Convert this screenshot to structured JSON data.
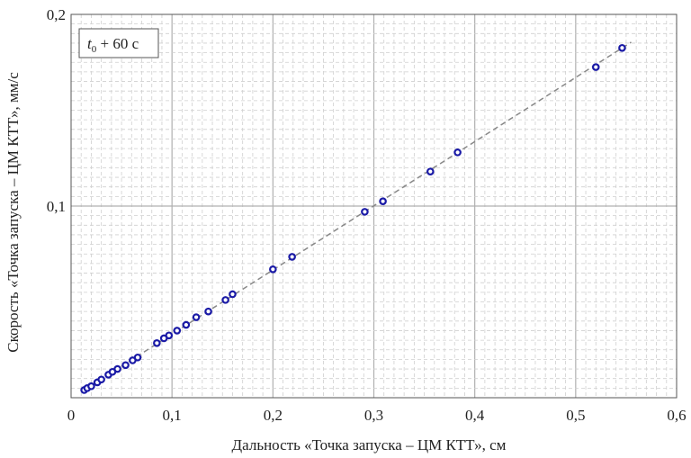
{
  "chart_data": {
    "type": "scatter",
    "title": "",
    "xlabel": "Дальность «Точка запуска – ЦМ КТТ», см",
    "ylabel": "Скорость «Точка запуска – ЦМ КТТ», мм/с",
    "xlim": [
      0,
      0.6
    ],
    "ylim": [
      0,
      0.2
    ],
    "xticks": [
      0,
      0.1,
      0.2,
      0.3,
      0.4,
      0.5,
      0.6
    ],
    "xtick_labels": [
      "0",
      "0,1",
      "0,2",
      "0,3",
      "0,4",
      "0,5",
      "0,6"
    ],
    "yticks": [
      0.1,
      0.2
    ],
    "ytick_labels": [
      "0,1",
      "0,2"
    ],
    "grid": true,
    "annotation": {
      "t": "t",
      "sub": "0",
      "rest": " + 60 с"
    },
    "colors": {
      "marker": "#1a1aa6",
      "trend": "#888888",
      "grid_major": "#b0b0b0",
      "grid_minor": "#cfcfcf"
    },
    "trend_line": {
      "style": "dashed",
      "x": [
        0.012,
        0.555
      ],
      "y": [
        0.0037,
        0.1855
      ]
    },
    "series": [
      {
        "x": [
          0.013,
          0.016,
          0.02,
          0.026,
          0.03,
          0.037,
          0.041,
          0.046,
          0.054,
          0.061,
          0.066,
          0.085,
          0.092,
          0.097,
          0.105,
          0.114,
          0.124,
          0.136,
          0.153,
          0.16,
          0.2,
          0.219,
          0.291,
          0.309,
          0.356,
          0.383,
          0.52,
          0.546
        ],
        "y": [
          0.004,
          0.005,
          0.006,
          0.008,
          0.0095,
          0.012,
          0.0135,
          0.015,
          0.017,
          0.0195,
          0.021,
          0.0285,
          0.031,
          0.0325,
          0.035,
          0.038,
          0.042,
          0.045,
          0.051,
          0.054,
          0.067,
          0.0735,
          0.097,
          0.1025,
          0.118,
          0.128,
          0.1725,
          0.1825
        ]
      }
    ]
  }
}
